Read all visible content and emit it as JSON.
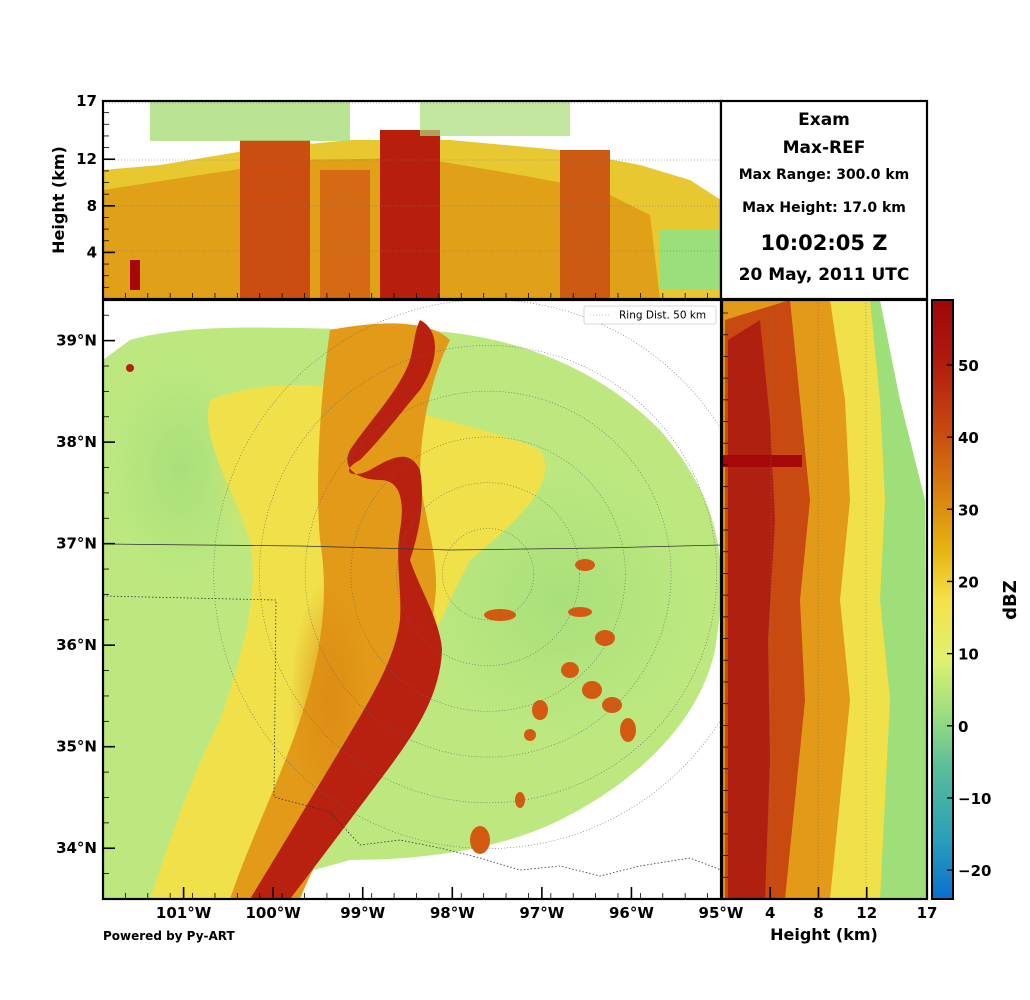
{
  "info": {
    "title": "Exam",
    "product": "Max-REF",
    "max_range": "Max Range: 300.0 km",
    "max_height": "Max Height: 17.0 km",
    "time": "10:02:05 Z",
    "date": "20 May, 2011 UTC"
  },
  "footer": {
    "credit": "Powered by Py-ART"
  },
  "chart_data": [
    {
      "type": "heatmap",
      "panel": "top-height-longitude",
      "ylabel": "Height (km)",
      "ylim": [
        0,
        17
      ],
      "xlim": [
        -101.9,
        -95.0
      ],
      "yticks": [
        {
          "v": 4,
          "label": "4"
        },
        {
          "v": 8,
          "label": "8"
        },
        {
          "v": 12,
          "label": "12"
        },
        {
          "v": 17,
          "label": "17"
        }
      ],
      "grid": true
    },
    {
      "type": "heatmap",
      "panel": "main-plan-view",
      "xlim": [
        -101.9,
        -95.0
      ],
      "ylim": [
        33.5,
        39.4
      ],
      "xticks": [
        {
          "v": -101,
          "label": "101°W"
        },
        {
          "v": -100,
          "label": "100°W"
        },
        {
          "v": -99,
          "label": "99°W"
        },
        {
          "v": -98,
          "label": "98°W"
        },
        {
          "v": -97,
          "label": "97°W"
        },
        {
          "v": -96,
          "label": "96°W"
        },
        {
          "v": -95,
          "label": "95°W"
        }
      ],
      "yticks": [
        {
          "v": 34,
          "label": "34°N"
        },
        {
          "v": 35,
          "label": "35°N"
        },
        {
          "v": 36,
          "label": "36°N"
        },
        {
          "v": 37,
          "label": "37°N"
        },
        {
          "v": 38,
          "label": "38°N"
        },
        {
          "v": 39,
          "label": "39°N"
        }
      ],
      "radar_center": [
        -97.6,
        36.7
      ],
      "ring_spacing_km": 50,
      "legend": {
        "label": "Ring Dist. 50 km",
        "position": "top-right"
      }
    },
    {
      "type": "heatmap",
      "panel": "right-height-latitude",
      "xlabel": "Height (km)",
      "xlim": [
        0,
        17
      ],
      "ylim": [
        33.5,
        39.4
      ],
      "xticks": [
        {
          "v": 4,
          "label": "4"
        },
        {
          "v": 8,
          "label": "8"
        },
        {
          "v": 12,
          "label": "12"
        },
        {
          "v": 17,
          "label": "17"
        }
      ],
      "grid": true
    },
    {
      "type": "colorbar",
      "label": "dBZ",
      "range": [
        -24,
        59
      ],
      "ticks": [
        {
          "v": -20,
          "label": "−20"
        },
        {
          "v": -10,
          "label": "−10"
        },
        {
          "v": 0,
          "label": "0"
        },
        {
          "v": 10,
          "label": "10"
        },
        {
          "v": 20,
          "label": "20"
        },
        {
          "v": 30,
          "label": "30"
        },
        {
          "v": 40,
          "label": "40"
        },
        {
          "v": 50,
          "label": "50"
        }
      ],
      "colors": [
        "#0a6ed0",
        "#2a9fb8",
        "#5bbd9a",
        "#96db80",
        "#dff270",
        "#f5e04a",
        "#e6b510",
        "#d98010",
        "#c84a10",
        "#b01a0e",
        "#a00606"
      ]
    }
  ]
}
